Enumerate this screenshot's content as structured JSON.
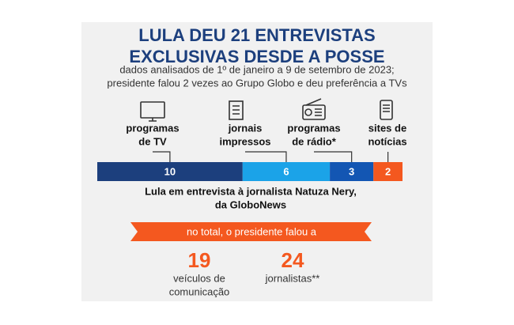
{
  "chart_data": {
    "type": "stacked-hbar",
    "title": [
      "LULA DEU 21 ENTREVISTAS",
      "EXCLUSIVAS DESDE A POSSE"
    ],
    "subtitle": [
      "dados analisados de 1º de janeiro a 9 de setembro de 2023;",
      "presidente falou 2 vezes ao Grupo Globo e deu preferência a TVs"
    ],
    "categories": [
      [
        "programas",
        "de TV"
      ],
      [
        "jornais",
        "impressos"
      ],
      [
        "programas",
        "de rádio*"
      ],
      [
        "sites de",
        "notícias"
      ]
    ],
    "values": [
      10,
      6,
      3,
      2
    ],
    "colors": [
      "#1c3f7d",
      "#1ba3e8",
      "#1356b3",
      "#f4581f"
    ],
    "caption": [
      "Lula em entrevista à jornalista Natuza Nery,",
      "da GloboNews"
    ],
    "banner": "no total, o presidente falou a",
    "stats": [
      {
        "value": 19,
        "label": [
          "veículos de",
          "comunicação"
        ]
      },
      {
        "value": 24,
        "label": [
          "jornalistas**"
        ]
      }
    ]
  }
}
